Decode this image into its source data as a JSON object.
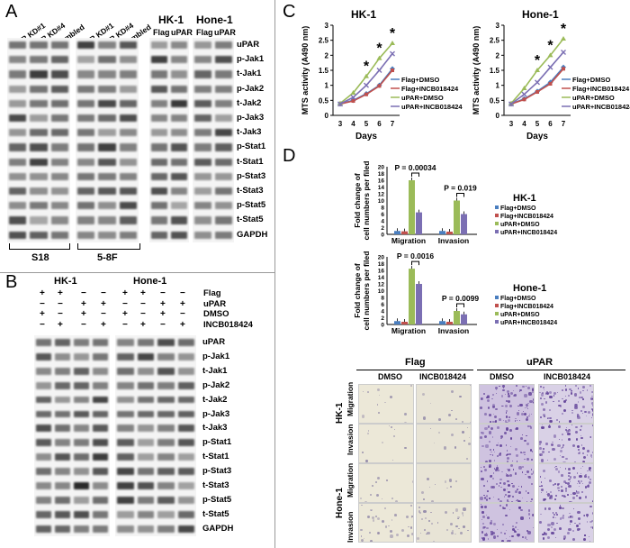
{
  "panels": {
    "a": "A",
    "b": "B",
    "c": "C",
    "d": "D"
  },
  "panelA": {
    "col_labels_left": [
      "uPAR KD#1",
      "uPAR KD#4",
      "Scrambled"
    ],
    "col_labels_mid": [
      "uPAR KD#1",
      "uPAR KD#4",
      "Scrambled"
    ],
    "groupHK": "HK-1",
    "groupHone": "Hone-1",
    "flag": "Flag",
    "upar": "uPAR",
    "rows": [
      "uPAR",
      "p-Jak1",
      "t-Jak1",
      "p-Jak2",
      "t-Jak2",
      "p-Jak3",
      "t-Jak3",
      "p-Stat1",
      "t-Stat1",
      "p-Stat3",
      "t-Stat3",
      "p-Stat5",
      "t-Stat5",
      "GAPDH"
    ],
    "cell_left": "S18",
    "cell_mid": "5-8F"
  },
  "panelB": {
    "groupHK": "HK-1",
    "groupHone": "Hone-1",
    "treat_labels": [
      "Flag",
      "uPAR",
      "DMSO",
      "INCB018424"
    ],
    "signs": [
      [
        "+",
        "+",
        "−",
        "−",
        "+",
        "+",
        "−",
        "−"
      ],
      [
        "−",
        "−",
        "+",
        "+",
        "−",
        "−",
        "+",
        "+"
      ],
      [
        "+",
        "−",
        "+",
        "−",
        "+",
        "−",
        "+",
        "−"
      ],
      [
        "−",
        "+",
        "−",
        "+",
        "−",
        "+",
        "−",
        "+"
      ]
    ],
    "rows": [
      "uPAR",
      "p-Jak1",
      "t-Jak1",
      "p-Jak2",
      "t-Jak2",
      "p-Jak3",
      "t-Jak3",
      "p-Stat1",
      "t-Stat1",
      "p-Stat3",
      "t-Stat3",
      "p-Stat5",
      "t-Stat5",
      "GAPDH"
    ]
  },
  "panelC": {
    "chart_data": [
      {
        "type": "line",
        "title": "HK-1",
        "xlabel": "Days",
        "ylabel": "MTS activity (A490 nm)",
        "x": [
          3,
          4,
          5,
          6,
          7
        ],
        "ylim": [
          0,
          3
        ],
        "yticks": [
          "0",
          "0.5",
          "1",
          "1.5",
          "2",
          "2.5",
          "3"
        ],
        "xticks": [
          "3",
          "4",
          "5",
          "6",
          "7"
        ],
        "series": [
          {
            "name": "Flag+DMSO",
            "color": "#4a7ebf",
            "values": [
              0.38,
              0.5,
              0.72,
              1.0,
              1.55
            ]
          },
          {
            "name": "Flag+INCB018424",
            "color": "#c0504d",
            "values": [
              0.38,
              0.48,
              0.7,
              0.98,
              1.5
            ]
          },
          {
            "name": "uPAR+DMSO",
            "color": "#9bbb59",
            "values": [
              0.4,
              0.75,
              1.3,
              1.9,
              2.4
            ]
          },
          {
            "name": "uPAR+INCB018424",
            "color": "#7b6fb3",
            "values": [
              0.38,
              0.6,
              1.0,
              1.5,
              2.05
            ]
          }
        ],
        "stars": [
          "*",
          "*",
          "*"
        ]
      },
      {
        "type": "line",
        "title": "Hone-1",
        "xlabel": "Days",
        "ylabel": "MTS activity (A490 nm)",
        "x": [
          3,
          4,
          5,
          6,
          7
        ],
        "ylim": [
          0,
          3
        ],
        "yticks": [
          "0",
          "0.5",
          "1",
          "1.5",
          "2",
          "2.5",
          "3"
        ],
        "xticks": [
          "3",
          "4",
          "5",
          "6",
          "7"
        ],
        "series": [
          {
            "name": "Flag+DMSO",
            "color": "#4a7ebf",
            "values": [
              0.38,
              0.55,
              0.8,
              1.1,
              1.6
            ]
          },
          {
            "name": "Flag+INCB018424",
            "color": "#c0504d",
            "values": [
              0.38,
              0.53,
              0.78,
              1.05,
              1.55
            ]
          },
          {
            "name": "uPAR+DMSO",
            "color": "#9bbb59",
            "values": [
              0.4,
              0.9,
              1.5,
              2.0,
              2.55
            ]
          },
          {
            "name": "uPAR+INCB018424",
            "color": "#7b6fb3",
            "values": [
              0.38,
              0.7,
              1.1,
              1.6,
              2.1
            ]
          }
        ],
        "stars": [
          "*",
          "*",
          "*"
        ]
      }
    ]
  },
  "panelD": {
    "chart_data": [
      {
        "type": "bar",
        "title": "HK-1",
        "ylabel": "Fold change of cell numbers per filed",
        "categories": [
          "Migration",
          "Invasion"
        ],
        "ylim": [
          0,
          20
        ],
        "yticks": [
          "0",
          "2",
          "4",
          "6",
          "8",
          "10",
          "12",
          "14",
          "16",
          "18",
          "20"
        ],
        "series": [
          {
            "name": "Flag+DMSO",
            "color": "#4a7ebf",
            "values": [
              1,
              1
            ]
          },
          {
            "name": "Flag+INCB018424",
            "color": "#c0504d",
            "values": [
              0.9,
              0.8
            ]
          },
          {
            "name": "uPAR+DMSO",
            "color": "#9bbb59",
            "values": [
              16,
              10
            ]
          },
          {
            "name": "uPAR+INCB018424",
            "color": "#7b6fb3",
            "values": [
              6.5,
              6
            ]
          }
        ],
        "pvals": [
          "P = 0.00034",
          "P = 0.019"
        ]
      },
      {
        "type": "bar",
        "title": "Hone-1",
        "ylabel": "Fold change of cell numbers per filed",
        "categories": [
          "Migration",
          "Invasion"
        ],
        "ylim": [
          0,
          20
        ],
        "yticks": [
          "0",
          "2",
          "4",
          "6",
          "8",
          "10",
          "12",
          "14",
          "16",
          "18",
          "20"
        ],
        "series": [
          {
            "name": "Flag+DMSO",
            "color": "#4a7ebf",
            "values": [
              1,
              1
            ]
          },
          {
            "name": "Flag+INCB018424",
            "color": "#c0504d",
            "values": [
              0.8,
              0.8
            ]
          },
          {
            "name": "uPAR+DMSO",
            "color": "#9bbb59",
            "values": [
              16.5,
              4
            ]
          },
          {
            "name": "uPAR+INCB018424",
            "color": "#7b6fb3",
            "values": [
              12,
              3
            ]
          }
        ],
        "pvals": [
          "P = 0.0016",
          "P = 0.0099"
        ]
      }
    ],
    "micro": {
      "flag": "Flag",
      "upar": "uPAR",
      "cols": [
        "DMSO",
        "INCB018424",
        "DMSO",
        "INCB018424"
      ],
      "hk": "HK-1",
      "hone": "Hone-1",
      "migration": "Migration",
      "invasion": "Invasion"
    }
  }
}
